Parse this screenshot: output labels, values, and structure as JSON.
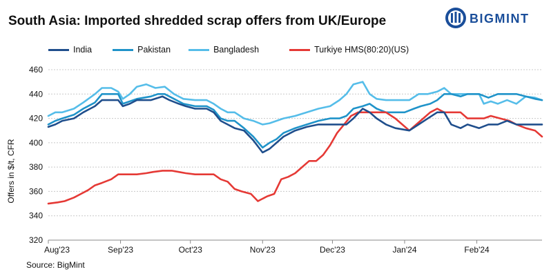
{
  "title": "South Asia: Imported shredded scrap offers from UK/Europe",
  "brand": {
    "name": "BIGMINT",
    "color": "#1a4e9a"
  },
  "source": "Source: BigMint",
  "chart_data": {
    "type": "line",
    "ylabel": "Offers in $/t, CFR",
    "xlabel": "",
    "ylim": [
      320,
      460
    ],
    "yticks": [
      320,
      340,
      360,
      380,
      400,
      420,
      440,
      460
    ],
    "xlim": [
      "2023-08-01",
      "2024-02-29"
    ],
    "xticks": [
      {
        "label": "Aug'23",
        "date": "2023-08-01"
      },
      {
        "label": "Sep'23",
        "date": "2023-09-01"
      },
      {
        "label": "Oct'23",
        "date": "2023-10-01"
      },
      {
        "label": "Nov'23",
        "date": "2023-11-01"
      },
      {
        "label": "Dec'23",
        "date": "2023-12-01"
      },
      {
        "label": "Jan'24",
        "date": "2024-01-01"
      },
      {
        "label": "Feb'24",
        "date": "2024-02-01"
      }
    ],
    "grid": "horizontal",
    "legend_position": "top",
    "series": [
      {
        "name": "India",
        "color": "#1f4e8c",
        "points": [
          [
            "2023-08-01",
            413
          ],
          [
            "2023-08-04",
            415
          ],
          [
            "2023-08-07",
            418
          ],
          [
            "2023-08-12",
            420
          ],
          [
            "2023-08-16",
            425
          ],
          [
            "2023-08-21",
            430
          ],
          [
            "2023-08-24",
            435
          ],
          [
            "2023-08-28",
            435
          ],
          [
            "2023-08-31",
            435
          ],
          [
            "2023-09-02",
            430
          ],
          [
            "2023-09-05",
            432
          ],
          [
            "2023-09-08",
            435
          ],
          [
            "2023-09-14",
            435
          ],
          [
            "2023-09-19",
            438
          ],
          [
            "2023-09-22",
            435
          ],
          [
            "2023-09-26",
            432
          ],
          [
            "2023-09-29",
            430
          ],
          [
            "2023-10-03",
            428
          ],
          [
            "2023-10-08",
            428
          ],
          [
            "2023-10-11",
            425
          ],
          [
            "2023-10-14",
            418
          ],
          [
            "2023-10-17",
            415
          ],
          [
            "2023-10-20",
            412
          ],
          [
            "2023-10-24",
            410
          ],
          [
            "2023-10-28",
            402
          ],
          [
            "2023-11-01",
            392
          ],
          [
            "2023-11-04",
            395
          ],
          [
            "2023-11-07",
            400
          ],
          [
            "2023-11-10",
            405
          ],
          [
            "2023-11-15",
            410
          ],
          [
            "2023-11-20",
            413
          ],
          [
            "2023-11-25",
            415
          ],
          [
            "2023-11-30",
            415
          ],
          [
            "2023-12-04",
            415
          ],
          [
            "2023-12-07",
            415
          ],
          [
            "2023-12-10",
            420
          ],
          [
            "2023-12-14",
            428
          ],
          [
            "2023-12-17",
            425
          ],
          [
            "2023-12-20",
            420
          ],
          [
            "2023-12-24",
            415
          ],
          [
            "2023-12-28",
            412
          ],
          [
            "2024-01-03",
            410
          ],
          [
            "2024-01-07",
            415
          ],
          [
            "2024-01-11",
            420
          ],
          [
            "2024-01-15",
            425
          ],
          [
            "2024-01-18",
            425
          ],
          [
            "2024-01-21",
            415
          ],
          [
            "2024-01-25",
            412
          ],
          [
            "2024-01-28",
            415
          ],
          [
            "2024-02-02",
            412
          ],
          [
            "2024-02-06",
            415
          ],
          [
            "2024-02-10",
            415
          ],
          [
            "2024-02-14",
            418
          ],
          [
            "2024-02-18",
            415
          ],
          [
            "2024-02-22",
            415
          ],
          [
            "2024-02-26",
            415
          ],
          [
            "2024-02-29",
            415
          ]
        ]
      },
      {
        "name": "Pakistan",
        "color": "#1f93c9",
        "points": [
          [
            "2023-08-01",
            415
          ],
          [
            "2023-08-04",
            418
          ],
          [
            "2023-08-07",
            420
          ],
          [
            "2023-08-12",
            423
          ],
          [
            "2023-08-16",
            428
          ],
          [
            "2023-08-21",
            433
          ],
          [
            "2023-08-24",
            440
          ],
          [
            "2023-08-28",
            440
          ],
          [
            "2023-08-31",
            440
          ],
          [
            "2023-09-02",
            432
          ],
          [
            "2023-09-05",
            434
          ],
          [
            "2023-09-08",
            436
          ],
          [
            "2023-09-14",
            438
          ],
          [
            "2023-09-17",
            440
          ],
          [
            "2023-09-20",
            440
          ],
          [
            "2023-09-24",
            436
          ],
          [
            "2023-09-28",
            432
          ],
          [
            "2023-10-03",
            430
          ],
          [
            "2023-10-08",
            430
          ],
          [
            "2023-10-11",
            427
          ],
          [
            "2023-10-14",
            420
          ],
          [
            "2023-10-17",
            418
          ],
          [
            "2023-10-20",
            418
          ],
          [
            "2023-10-24",
            412
          ],
          [
            "2023-10-28",
            405
          ],
          [
            "2023-11-01",
            396
          ],
          [
            "2023-11-04",
            400
          ],
          [
            "2023-11-07",
            403
          ],
          [
            "2023-11-10",
            408
          ],
          [
            "2023-11-15",
            412
          ],
          [
            "2023-11-20",
            415
          ],
          [
            "2023-11-25",
            418
          ],
          [
            "2023-11-30",
            420
          ],
          [
            "2023-12-04",
            420
          ],
          [
            "2023-12-07",
            422
          ],
          [
            "2023-12-10",
            428
          ],
          [
            "2023-12-14",
            430
          ],
          [
            "2023-12-17",
            432
          ],
          [
            "2023-12-20",
            428
          ],
          [
            "2023-12-24",
            425
          ],
          [
            "2023-12-28",
            425
          ],
          [
            "2024-01-01",
            425
          ],
          [
            "2024-01-05",
            428
          ],
          [
            "2024-01-08",
            430
          ],
          [
            "2024-01-12",
            432
          ],
          [
            "2024-01-15",
            435
          ],
          [
            "2024-01-18",
            440
          ],
          [
            "2024-01-21",
            440
          ],
          [
            "2024-01-25",
            438
          ],
          [
            "2024-01-28",
            440
          ],
          [
            "2024-02-02",
            440
          ],
          [
            "2024-02-06",
            437
          ],
          [
            "2024-02-10",
            440
          ],
          [
            "2024-02-14",
            440
          ],
          [
            "2024-02-18",
            440
          ],
          [
            "2024-02-22",
            438
          ],
          [
            "2024-02-26",
            436
          ],
          [
            "2024-02-29",
            435
          ]
        ]
      },
      {
        "name": "Bangladesh",
        "color": "#55bde9",
        "points": [
          [
            "2023-08-01",
            422
          ],
          [
            "2023-08-04",
            425
          ],
          [
            "2023-08-07",
            425
          ],
          [
            "2023-08-12",
            428
          ],
          [
            "2023-08-16",
            433
          ],
          [
            "2023-08-21",
            440
          ],
          [
            "2023-08-24",
            445
          ],
          [
            "2023-08-28",
            445
          ],
          [
            "2023-08-31",
            442
          ],
          [
            "2023-09-02",
            436
          ],
          [
            "2023-09-05",
            440
          ],
          [
            "2023-09-08",
            446
          ],
          [
            "2023-09-12",
            448
          ],
          [
            "2023-09-16",
            445
          ],
          [
            "2023-09-20",
            446
          ],
          [
            "2023-09-24",
            440
          ],
          [
            "2023-09-28",
            436
          ],
          [
            "2023-10-03",
            435
          ],
          [
            "2023-10-08",
            435
          ],
          [
            "2023-10-11",
            432
          ],
          [
            "2023-10-14",
            428
          ],
          [
            "2023-10-17",
            425
          ],
          [
            "2023-10-20",
            425
          ],
          [
            "2023-10-24",
            420
          ],
          [
            "2023-10-28",
            418
          ],
          [
            "2023-11-01",
            415
          ],
          [
            "2023-11-04",
            416
          ],
          [
            "2023-11-07",
            418
          ],
          [
            "2023-11-10",
            420
          ],
          [
            "2023-11-15",
            422
          ],
          [
            "2023-11-20",
            425
          ],
          [
            "2023-11-25",
            428
          ],
          [
            "2023-11-30",
            430
          ],
          [
            "2023-12-04",
            435
          ],
          [
            "2023-12-07",
            440
          ],
          [
            "2023-12-10",
            448
          ],
          [
            "2023-12-14",
            450
          ],
          [
            "2023-12-17",
            440
          ],
          [
            "2023-12-20",
            436
          ],
          [
            "2023-12-24",
            435
          ],
          [
            "2023-12-28",
            435
          ],
          [
            "2024-01-03",
            435
          ],
          [
            "2024-01-07",
            440
          ],
          [
            "2024-01-11",
            440
          ],
          [
            "2024-01-15",
            442
          ],
          [
            "2024-01-18",
            445
          ],
          [
            "2024-01-21",
            440
          ],
          [
            "2024-01-25",
            440
          ],
          [
            "2024-01-28",
            440
          ],
          [
            "2024-02-02",
            440
          ],
          [
            "2024-02-04",
            432
          ],
          [
            "2024-02-07",
            434
          ],
          [
            "2024-02-10",
            432
          ],
          [
            "2024-02-14",
            435
          ],
          [
            "2024-02-18",
            432
          ],
          [
            "2024-02-22",
            438
          ],
          [
            "2024-02-26",
            437
          ],
          [
            "2024-02-29",
            435
          ]
        ]
      },
      {
        "name": "Turkiye HMS(80:20)(US)",
        "color": "#e53935",
        "points": [
          [
            "2023-08-01",
            350
          ],
          [
            "2023-08-05",
            351
          ],
          [
            "2023-08-08",
            352
          ],
          [
            "2023-08-12",
            355
          ],
          [
            "2023-08-15",
            358
          ],
          [
            "2023-08-18",
            361
          ],
          [
            "2023-08-21",
            365
          ],
          [
            "2023-08-24",
            367
          ],
          [
            "2023-08-28",
            370
          ],
          [
            "2023-08-31",
            374
          ],
          [
            "2023-09-04",
            374
          ],
          [
            "2023-09-08",
            374
          ],
          [
            "2023-09-12",
            375
          ],
          [
            "2023-09-15",
            376
          ],
          [
            "2023-09-19",
            377
          ],
          [
            "2023-09-23",
            377
          ],
          [
            "2023-09-26",
            376
          ],
          [
            "2023-09-29",
            375
          ],
          [
            "2023-10-03",
            374
          ],
          [
            "2023-10-07",
            374
          ],
          [
            "2023-10-11",
            374
          ],
          [
            "2023-10-14",
            370
          ],
          [
            "2023-10-17",
            368
          ],
          [
            "2023-10-20",
            362
          ],
          [
            "2023-10-23",
            360
          ],
          [
            "2023-10-27",
            358
          ],
          [
            "2023-10-30",
            352
          ],
          [
            "2023-11-03",
            356
          ],
          [
            "2023-11-06",
            358
          ],
          [
            "2023-11-09",
            370
          ],
          [
            "2023-11-12",
            372
          ],
          [
            "2023-11-15",
            375
          ],
          [
            "2023-11-18",
            380
          ],
          [
            "2023-11-21",
            385
          ],
          [
            "2023-11-24",
            385
          ],
          [
            "2023-11-27",
            390
          ],
          [
            "2023-11-30",
            398
          ],
          [
            "2023-12-03",
            408
          ],
          [
            "2023-12-06",
            415
          ],
          [
            "2023-12-09",
            422
          ],
          [
            "2023-12-12",
            425
          ],
          [
            "2023-12-16",
            425
          ],
          [
            "2023-12-20",
            425
          ],
          [
            "2023-12-24",
            425
          ],
          [
            "2023-12-28",
            420
          ],
          [
            "2023-12-31",
            415
          ],
          [
            "2024-01-03",
            410
          ],
          [
            "2024-01-06",
            415
          ],
          [
            "2024-01-09",
            420
          ],
          [
            "2024-01-12",
            425
          ],
          [
            "2024-01-15",
            428
          ],
          [
            "2024-01-18",
            425
          ],
          [
            "2024-01-21",
            425
          ],
          [
            "2024-01-25",
            425
          ],
          [
            "2024-01-28",
            420
          ],
          [
            "2024-02-01",
            420
          ],
          [
            "2024-02-04",
            420
          ],
          [
            "2024-02-07",
            422
          ],
          [
            "2024-02-11",
            420
          ],
          [
            "2024-02-15",
            418
          ],
          [
            "2024-02-18",
            415
          ],
          [
            "2024-02-22",
            412
          ],
          [
            "2024-02-26",
            410
          ],
          [
            "2024-02-29",
            405
          ]
        ]
      }
    ]
  }
}
